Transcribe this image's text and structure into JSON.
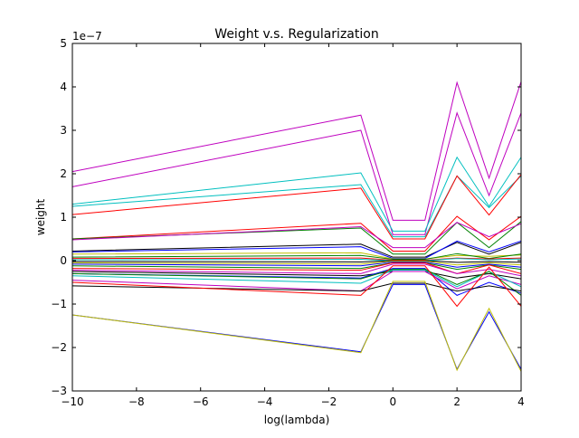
{
  "chart_data": {
    "type": "line",
    "title": "Weight v.s. Regularization",
    "xlabel": "log(lambda)",
    "ylabel": "weight",
    "y_offset_label": "1e−7",
    "xlim": [
      -10,
      4
    ],
    "ylim": [
      -3,
      5
    ],
    "x_ticks": [
      -10,
      -8,
      -6,
      -4,
      -2,
      0,
      2,
      4
    ],
    "x_tick_labels": [
      "−10",
      "−8",
      "−6",
      "−4",
      "−2",
      "0",
      "2",
      "4"
    ],
    "y_ticks": [
      -3,
      -2,
      -1,
      0,
      1,
      2,
      3,
      4,
      5
    ],
    "y_tick_labels": [
      "−3",
      "−2",
      "−1",
      "0",
      "1",
      "2",
      "3",
      "4",
      "5"
    ],
    "grid": false,
    "x": [
      -10,
      -1,
      0,
      1,
      2,
      3,
      4
    ],
    "y_scale_note": "values in units of 1e-7",
    "series": [
      {
        "color": "#bf00bf",
        "values": [
          2.05,
          3.35,
          0.93,
          0.93,
          4.1,
          1.9,
          4.12
        ]
      },
      {
        "color": "#bf00bf",
        "values": [
          1.7,
          3.0,
          0.6,
          0.6,
          3.4,
          1.5,
          3.4
        ]
      },
      {
        "color": "#00bfbf",
        "values": [
          1.3,
          2.02,
          0.68,
          0.68,
          2.38,
          1.25,
          2.38
        ]
      },
      {
        "color": "#00bfbf",
        "values": [
          1.25,
          1.75,
          0.55,
          0.55,
          1.95,
          1.22,
          1.95
        ]
      },
      {
        "color": "#ff0000",
        "values": [
          1.06,
          1.67,
          0.5,
          0.5,
          1.95,
          1.05,
          1.98
        ]
      },
      {
        "color": "#ff0000",
        "values": [
          0.5,
          0.86,
          0.22,
          0.22,
          1.02,
          0.48,
          1.02
        ]
      },
      {
        "color": "#008000",
        "values": [
          0.5,
          0.75,
          0.15,
          0.15,
          0.88,
          0.3,
          0.9
        ]
      },
      {
        "color": "#bf00bf",
        "values": [
          0.48,
          0.78,
          0.3,
          0.3,
          0.88,
          0.55,
          0.85
        ]
      },
      {
        "color": "#000000",
        "values": [
          0.22,
          0.38,
          0.08,
          0.08,
          0.42,
          0.15,
          0.42
        ]
      },
      {
        "color": "#0000ff",
        "values": [
          0.2,
          0.32,
          0.05,
          0.05,
          0.45,
          0.2,
          0.45
        ]
      },
      {
        "color": "#bfbf00",
        "values": [
          0.15,
          0.18,
          0.04,
          0.04,
          0.12,
          0.1,
          0.13
        ]
      },
      {
        "color": "#008000",
        "values": [
          0.08,
          0.12,
          0.03,
          0.03,
          0.16,
          0.05,
          0.15
        ]
      },
      {
        "color": "#ff0000",
        "values": [
          0.05,
          0.06,
          0.01,
          0.01,
          0.06,
          0.04,
          0.06
        ]
      },
      {
        "color": "#00bfbf",
        "values": [
          0.02,
          0.03,
          0.0,
          0.0,
          0.05,
          0.02,
          0.04
        ]
      },
      {
        "color": "#000000",
        "values": [
          -0.02,
          -0.03,
          0.0,
          0.0,
          -0.04,
          -0.02,
          -0.04
        ]
      },
      {
        "color": "#bfbf00",
        "values": [
          -0.05,
          -0.08,
          -0.01,
          -0.01,
          -0.1,
          -0.05,
          -0.1
        ]
      },
      {
        "color": "#0000ff",
        "values": [
          -0.08,
          -0.12,
          -0.03,
          -0.03,
          -0.15,
          -0.08,
          -0.15
        ]
      },
      {
        "color": "#008000",
        "values": [
          -0.12,
          -0.18,
          -0.05,
          -0.05,
          -0.2,
          -0.1,
          -0.2
        ]
      },
      {
        "color": "#ff0000",
        "values": [
          -0.18,
          -0.22,
          -0.05,
          -0.05,
          -0.3,
          -0.1,
          -0.3
        ]
      },
      {
        "color": "#bf00bf",
        "values": [
          -0.22,
          -0.3,
          -0.08,
          -0.08,
          -0.3,
          -0.2,
          -0.35
        ]
      },
      {
        "color": "#000000",
        "values": [
          -0.25,
          -0.35,
          -0.25,
          -0.25,
          -0.4,
          -0.3,
          -0.42
        ]
      },
      {
        "color": "#0000ff",
        "values": [
          -0.3,
          -0.4,
          -0.18,
          -0.18,
          -0.8,
          -0.5,
          -0.75
        ]
      },
      {
        "color": "#bf00bf",
        "values": [
          -0.45,
          -0.7,
          -0.25,
          -0.25,
          -0.65,
          -0.35,
          -0.55
        ]
      },
      {
        "color": "#00bfbf",
        "values": [
          -0.35,
          -0.52,
          -0.22,
          -0.22,
          -0.6,
          -0.25,
          -0.6
        ]
      },
      {
        "color": "#008000",
        "values": [
          -0.3,
          -0.42,
          -0.2,
          -0.2,
          -0.55,
          -0.25,
          -0.8
        ]
      },
      {
        "color": "#000000",
        "values": [
          -0.58,
          -0.7,
          -0.52,
          -0.52,
          -0.7,
          -0.58,
          -0.7
        ]
      },
      {
        "color": "#ff0000",
        "values": [
          -0.5,
          -0.8,
          -0.12,
          -0.12,
          -1.05,
          -0.15,
          -1.05
        ]
      },
      {
        "color": "#0000ff",
        "values": [
          -1.25,
          -2.1,
          -0.55,
          -0.55,
          -2.5,
          -1.18,
          -2.5
        ]
      },
      {
        "color": "#bfbf00",
        "values": [
          -1.25,
          -2.12,
          -0.48,
          -0.48,
          -2.52,
          -1.1,
          -2.55
        ]
      }
    ]
  }
}
